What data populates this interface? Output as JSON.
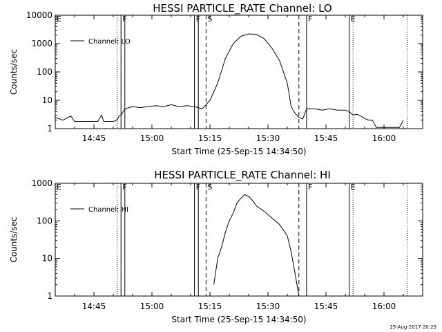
{
  "timestamp": "25-Aug-2017 20:23",
  "chart_data": [
    {
      "type": "line",
      "title": "HESSI PARTICLE_RATE Channel: LO",
      "xlabel": "Start Time (25-Sep-15 14:34:50)",
      "ylabel": "Counts/sec",
      "xlim": [
        "14:35",
        "16:10"
      ],
      "ylim": [
        1,
        10000
      ],
      "yscale": "log",
      "xticks": [
        "14:45",
        "15:00",
        "15:15",
        "15:30",
        "15:45",
        "16:00"
      ],
      "yticks": [
        "1",
        "10",
        "100",
        "1000",
        "10000"
      ],
      "legend": {
        "position": "top-left",
        "entries": [
          "Channel: LO"
        ]
      },
      "markers": [
        {
          "time": "14:35",
          "label": "E",
          "style": "dotted"
        },
        {
          "time": "14:51",
          "label": "",
          "style": "dotted"
        },
        {
          "time": "14:52",
          "label": "F",
          "style": "solid"
        },
        {
          "time": "14:53",
          "label": "",
          "style": "solid"
        },
        {
          "time": "15:11",
          "label": "F",
          "style": "solid"
        },
        {
          "time": "15:12",
          "label": "",
          "style": "solid"
        },
        {
          "time": "15:14",
          "label": "S",
          "style": "dashed"
        },
        {
          "time": "15:38",
          "label": "",
          "style": "dashed"
        },
        {
          "time": "15:40",
          "label": "F",
          "style": "solid"
        },
        {
          "time": "15:51",
          "label": "E",
          "style": "solid"
        },
        {
          "time": "15:52",
          "label": "",
          "style": "dotted"
        },
        {
          "time": "16:06",
          "label": "",
          "style": "dotted"
        }
      ],
      "series": [
        {
          "name": "Channel: LO",
          "segments": [
            [
              [
                "14:35",
                2.5
              ],
              [
                "14:37",
                2
              ],
              [
                "14:39",
                2.8
              ],
              [
                "14:40",
                1.8
              ],
              [
                "14:45",
                1.8
              ],
              [
                "14:46",
                1.8
              ],
              [
                "14:47",
                3
              ],
              [
                "14:47.5",
                1.8
              ],
              [
                "14:50",
                1.8
              ],
              [
                "14:51",
                2
              ],
              [
                "14:51.5",
                2.8
              ],
              [
                "14:52",
                3
              ],
              [
                "14:53",
                5
              ],
              [
                "14:55",
                6
              ],
              [
                "14:57",
                5.5
              ],
              [
                "14:59",
                6
              ],
              [
                "15:01",
                6.5
              ],
              [
                "15:03",
                6
              ],
              [
                "15:05",
                7
              ],
              [
                "15:07",
                6
              ],
              [
                "15:09",
                6.5
              ],
              [
                "15:11",
                6
              ],
              [
                "15:12",
                5.5
              ],
              [
                "15:13",
                5
              ],
              [
                "15:14",
                7
              ],
              [
                "15:15",
                10
              ],
              [
                "15:17",
                40
              ],
              [
                "15:19",
                300
              ],
              [
                "15:21",
                1000
              ],
              [
                "15:23",
                1800
              ],
              [
                "15:25",
                2200
              ],
              [
                "15:27",
                2100
              ],
              [
                "15:29",
                1500
              ],
              [
                "15:31",
                700
              ],
              [
                "15:33",
                250
              ],
              [
                "15:35",
                40
              ],
              [
                "15:36",
                6
              ],
              [
                "15:37",
                3.5
              ],
              [
                "15:38",
                2.5
              ],
              [
                "15:39",
                2.2
              ],
              [
                "15:40",
                5
              ],
              [
                "15:42",
                5
              ],
              [
                "15:44",
                4.5
              ],
              [
                "15:46",
                5
              ],
              [
                "15:48",
                4.5
              ],
              [
                "15:50",
                4.5
              ],
              [
                "15:51",
                4
              ],
              [
                "15:52",
                3
              ],
              [
                "15:53",
                3.2
              ],
              [
                "15:54",
                2.8
              ],
              [
                "15:55",
                2.3
              ],
              [
                "15:56",
                2
              ],
              [
                "15:57",
                2
              ],
              [
                "15:58",
                1.1
              ],
              [
                "16:00",
                1.1
              ],
              [
                "16:02",
                1.1
              ],
              [
                "16:04",
                1.1
              ],
              [
                "16:05",
                2
              ]
            ]
          ]
        }
      ]
    },
    {
      "type": "line",
      "title": "HESSI PARTICLE_RATE Channel: HI",
      "xlabel": "Start Time (25-Sep-15 14:34:50)",
      "ylabel": "Counts/sec",
      "xlim": [
        "14:35",
        "16:10"
      ],
      "ylim": [
        1,
        1000
      ],
      "yscale": "log",
      "xticks": [
        "14:45",
        "15:00",
        "15:15",
        "15:30",
        "15:45",
        "16:00"
      ],
      "yticks": [
        "1",
        "10",
        "100",
        "1000"
      ],
      "legend": {
        "position": "top-left",
        "entries": [
          "Channel: HI"
        ]
      },
      "markers": [
        {
          "time": "14:35",
          "label": "E",
          "style": "dotted"
        },
        {
          "time": "14:51",
          "label": "",
          "style": "dotted"
        },
        {
          "time": "14:52",
          "label": "F",
          "style": "solid"
        },
        {
          "time": "14:53",
          "label": "",
          "style": "solid"
        },
        {
          "time": "15:11",
          "label": "F",
          "style": "solid"
        },
        {
          "time": "15:12",
          "label": "",
          "style": "solid"
        },
        {
          "time": "15:14",
          "label": "S",
          "style": "dashed"
        },
        {
          "time": "15:38",
          "label": "",
          "style": "dashed"
        },
        {
          "time": "15:40",
          "label": "F",
          "style": "solid"
        },
        {
          "time": "15:51",
          "label": "E",
          "style": "solid"
        },
        {
          "time": "15:52",
          "label": "",
          "style": "dotted"
        },
        {
          "time": "16:06",
          "label": "",
          "style": "dotted"
        }
      ],
      "series": [
        {
          "name": "Channel: HI",
          "segments": [
            [
              [
                "15:16",
                2
              ],
              [
                "15:17",
                10
              ],
              [
                "15:18",
                20
              ],
              [
                "15:19",
                50
              ],
              [
                "15:20",
                100
              ],
              [
                "15:21",
                160
              ],
              [
                "15:22",
                300
              ],
              [
                "15:23",
                400
              ],
              [
                "15:24",
                500
              ],
              [
                "15:25",
                450
              ],
              [
                "15:26",
                350
              ],
              [
                "15:27",
                250
              ],
              [
                "15:29",
                180
              ],
              [
                "15:31",
                120
              ],
              [
                "15:33",
                80
              ],
              [
                "15:35",
                40
              ],
              [
                "15:36",
                15
              ],
              [
                "15:37",
                4
              ],
              [
                "15:38",
                1
              ]
            ]
          ]
        }
      ]
    }
  ]
}
